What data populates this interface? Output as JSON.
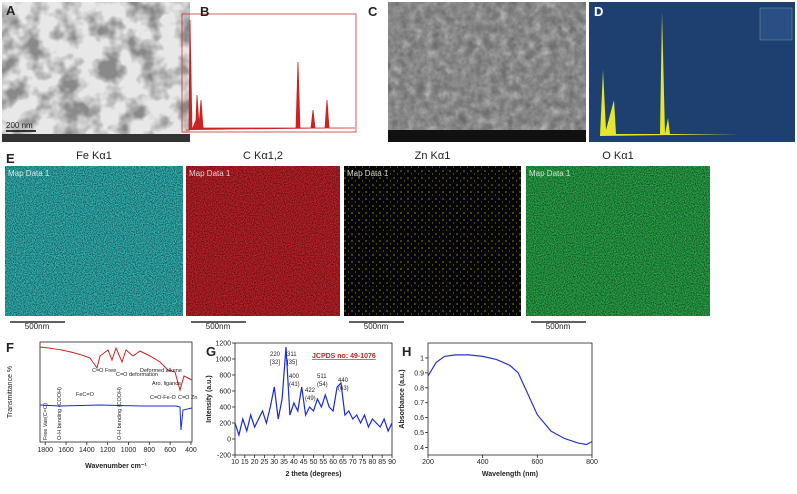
{
  "panels": {
    "A": {
      "label": "A",
      "scale_bar": "200 nm"
    },
    "B": {
      "label": "B"
    },
    "C": {
      "label": "C"
    },
    "D": {
      "label": "D"
    },
    "E": {
      "label": "E",
      "maps": [
        {
          "title": "Fe Kα1",
          "caption": "Map Data 1",
          "scale_bar": "500nm",
          "color": "#33b8b8"
        },
        {
          "title": "C Kα1,2",
          "caption": "Map Data 1",
          "scale_bar": "500nm",
          "color": "#c4222a"
        },
        {
          "title": "Zn Kα1",
          "caption": "Map Data 1",
          "scale_bar": "500nm",
          "color": "#d8d820"
        },
        {
          "title": "O Kα1",
          "caption": "Map Data 1",
          "scale_bar": "500nm",
          "color": "#2aa84a"
        }
      ]
    },
    "F": {
      "label": "F",
      "chart_data": {
        "type": "line",
        "x_label": "Wavenumber cm⁻¹",
        "y_label": "Transmittance %",
        "xlim": [
          1850,
          390
        ],
        "xticks": [
          1800,
          1600,
          1400,
          1200,
          1000,
          800,
          600,
          400
        ],
        "annotations": [
          "C=O Free",
          "C=O deformation",
          "Deformed alkene",
          "Aro. ligands",
          "FeC=O",
          "C=O-Fe-O",
          "C=O Zn",
          "Free Vas(C=O)",
          "O-H bending (COOH)",
          "O-H bending (COOH)"
        ]
      }
    },
    "G": {
      "label": "G",
      "chart_data": {
        "type": "line",
        "x_label": "2 theta (degrees)",
        "y_label": "Intensity (a.u.)",
        "reference": "JCPDS no: 49-1076",
        "x": [
          10,
          12,
          14,
          16,
          18,
          20,
          22,
          24,
          26,
          28,
          30,
          32,
          34,
          36,
          38,
          40,
          42,
          44,
          46,
          48,
          50,
          52,
          54,
          56,
          58,
          60,
          62,
          64,
          66,
          68,
          70,
          72,
          74,
          76,
          78,
          80,
          82,
          84,
          86,
          88,
          90
        ],
        "series": [
          {
            "color": "#1a2bd0",
            "values": [
              200,
              50,
              250,
              100,
              300,
              150,
              250,
              350,
              200,
              400,
              650,
              250,
              500,
              1150,
              300,
              450,
              350,
              650,
              300,
              400,
              350,
              500,
              400,
              550,
              400,
              350,
              650,
              700,
              300,
              350,
              250,
              300,
              200,
              300,
              150,
              250,
              200,
              150,
              250,
              100,
              200
            ]
          }
        ],
        "xlim": [
          10,
          90
        ],
        "xticks": [
          10,
          15,
          20,
          25,
          30,
          35,
          40,
          45,
          50,
          55,
          60,
          65,
          70,
          75,
          80,
          85,
          90
        ],
        "ylim": [
          -200,
          1200
        ],
        "yticks": [
          -200,
          0,
          200,
          400,
          600,
          800,
          1000,
          1200
        ],
        "annotations": [
          "220",
          "[32]",
          "311",
          "[35]",
          "400",
          "(41)",
          "422",
          "(49)",
          "511",
          "(54)",
          "440",
          "(63)"
        ]
      }
    },
    "H": {
      "label": "H",
      "chart_data": {
        "type": "line",
        "x_label": "Wavelength (nm)",
        "y_label": "Absorbance (a.u.)",
        "x": [
          200,
          230,
          260,
          300,
          350,
          400,
          450,
          500,
          530,
          560,
          600,
          650,
          700,
          750,
          780,
          800
        ],
        "series": [
          {
            "color": "#2a36b8",
            "values": [
              0.88,
              0.97,
              1.01,
              1.02,
              1.02,
              1.01,
              0.99,
              0.95,
              0.9,
              0.78,
              0.62,
              0.51,
              0.46,
              0.43,
              0.42,
              0.44
            ]
          }
        ],
        "xlim": [
          200,
          800
        ],
        "xticks": [
          200,
          400,
          600,
          800
        ],
        "ylim": [
          0.35,
          1.1
        ],
        "yticks": [
          0.4,
          0.5,
          0.6,
          0.7,
          0.8,
          0.9,
          1.0
        ]
      }
    }
  }
}
